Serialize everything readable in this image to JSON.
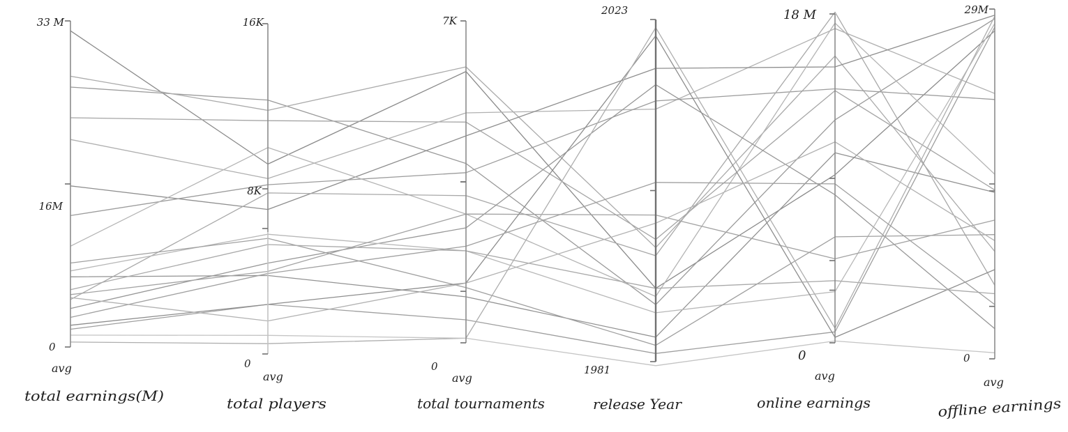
{
  "chart_data": {
    "type": "parallel_coordinates",
    "title": "",
    "grid": false,
    "axes": [
      {
        "name": "total earnings(M)",
        "avg_label": "avg",
        "max_label": "33 M",
        "mid_label": "16M",
        "min_label": "0",
        "min": 0,
        "max": 33
      },
      {
        "name": "total players",
        "avg_label": "avg",
        "max_label": "16K",
        "mid_label": "8K",
        "min_label": "0",
        "min": 0,
        "max": 16000
      },
      {
        "name": "total tournaments",
        "avg_label": "avg",
        "max_label": "7K",
        "mid_label": "",
        "min_label": "0",
        "min": 0,
        "max": 7000
      },
      {
        "name": "release Year",
        "avg_label": "",
        "max_label": "2023",
        "mid_label": "",
        "min_label": "1981",
        "min": 1981,
        "max": 2023
      },
      {
        "name": "online earnings",
        "avg_label": "avg",
        "max_label": "18 M",
        "mid_label": "",
        "min_label": "0",
        "min": 0,
        "max": 18
      },
      {
        "name": "offline earnings",
        "avg_label": "avg",
        "max_label": "29M",
        "mid_label": "",
        "min_label": "0",
        "min": 0,
        "max": 29
      }
    ],
    "series": [
      {
        "values": [
          32.0,
          9200,
          5900,
          1990,
          9.2,
          27.2
        ],
        "color": "#8a8a8a"
      },
      {
        "values": [
          26.3,
          12300,
          3900,
          1988,
          12.2,
          28.2
        ],
        "color": "#9a9a9a"
      },
      {
        "values": [
          27.4,
          11800,
          6000,
          1995,
          15.7,
          8.9
        ],
        "color": "#aaaaaa"
      },
      {
        "values": [
          23.2,
          11300,
          4800,
          1996,
          13.8,
          14.0
        ],
        "color": "#a5a5a5"
      },
      {
        "values": [
          21.0,
          8500,
          5000,
          2012,
          17.2,
          22.0
        ],
        "color": "#b0b0b0"
      },
      {
        "values": [
          16.3,
          7000,
          4500,
          2017,
          15.1,
          28.5
        ],
        "color": "#8e8e8e"
      },
      {
        "values": [
          13.3,
          8200,
          3700,
          2013,
          13.9,
          21.5
        ],
        "color": "#9c9c9c"
      },
      {
        "values": [
          10.2,
          10000,
          2800,
          1989,
          17.5,
          15.3
        ],
        "color": "#b4b4b4"
      },
      {
        "values": [
          7.1,
          3800,
          1000,
          1984,
          10.4,
          13.8
        ],
        "color": "#929292"
      },
      {
        "values": [
          4.8,
          7800,
          3200,
          1994,
          18.1,
          6.1
        ],
        "color": "#a8a8a8"
      },
      {
        "values": [
          3.9,
          4400,
          2500,
          2015,
          8.1,
          2.5
        ],
        "color": "#979797"
      },
      {
        "values": [
          7.7,
          5800,
          2000,
          1987,
          2.8,
          27.8
        ],
        "color": "#b8b8b8"
      },
      {
        "values": [
          8.5,
          5600,
          1200,
          1983,
          5.8,
          10.3
        ],
        "color": "#9f9f9f"
      },
      {
        "values": [
          5.3,
          4000,
          2800,
          1999,
          4.6,
          11.5
        ],
        "color": "#a3a3a3"
      },
      {
        "values": [
          1.8,
          2400,
          500,
          1982,
          0.6,
          27.5
        ],
        "color": "#9e9e9e"
      },
      {
        "values": [
          2.2,
          2400,
          1300,
          2021,
          0.3,
          7.4
        ],
        "color": "#8d8d8d"
      },
      {
        "values": [
          5.8,
          5300,
          2000,
          1990,
          3.4,
          5.4
        ],
        "color": "#a9a9a9"
      },
      {
        "values": [
          0.5,
          500,
          100,
          2022,
          0.8,
          28.4
        ],
        "color": "#aeaeae"
      },
      {
        "values": [
          1.2,
          900,
          100,
          1980.5,
          0.1,
          0.5
        ],
        "color": "#c4c4c4"
      },
      {
        "values": [
          3.0,
          3900,
          2100,
          2003,
          8.7,
          4.5
        ],
        "color": "#a0a0a0"
      },
      {
        "values": [
          5.0,
          1600,
          1300,
          1998,
          11.0,
          9.8
        ],
        "color": "#b2b2b2"
      }
    ]
  }
}
